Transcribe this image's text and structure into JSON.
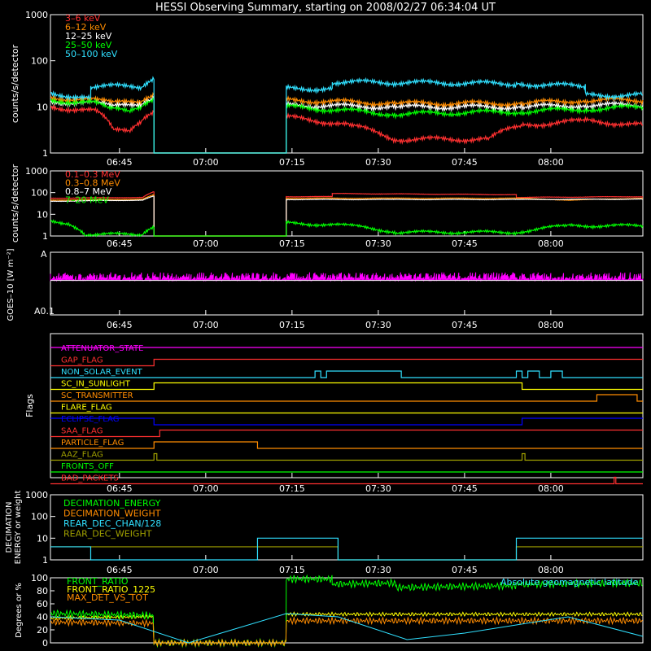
{
  "title": "HESSI Observing Summary, starting on 2008/02/27 06:34:04 UT",
  "time_ticks": [
    "06:45",
    "07:00",
    "07:15",
    "07:30",
    "07:45",
    "08:00"
  ],
  "colors": {
    "red": "#ff3030",
    "orange": "#ff8c00",
    "yellow": "#ffff00",
    "green": "#00ff00",
    "cyan": "#30e0ff",
    "magenta": "#ff00ff",
    "blue": "#0000ff",
    "olive": "#a0a000",
    "white": "#ffffff"
  },
  "chart_data": [
    {
      "type": "line",
      "id": "lo",
      "ylabel": "counts/s/detector",
      "yscale": "log",
      "ylim": [
        1,
        1000
      ],
      "yticks": [
        "1",
        "10",
        "100",
        "1000"
      ],
      "x_range_minutes": [
        0,
        103
      ],
      "series": [
        {
          "name": "3–6 keV",
          "color": "#ff3030",
          "x": [
            0,
            8,
            11,
            14,
            16,
            18,
            18,
            41,
            41,
            52,
            60,
            76,
            82,
            93,
            103
          ],
          "y": [
            10,
            8,
            3,
            3,
            5,
            8,
            1,
            1,
            6,
            4,
            2,
            2,
            4,
            5,
            4
          ]
        },
        {
          "name": "6–12 keV",
          "color": "#ff8c00",
          "x": [
            0,
            8,
            11,
            16,
            18,
            18,
            41,
            41,
            60,
            82,
            93,
            103
          ],
          "y": [
            16,
            14,
            12,
            14,
            20,
            1,
            1,
            14,
            12,
            12,
            14,
            14
          ]
        },
        {
          "name": "12–25 keV",
          "color": "#ffffff",
          "x": [
            0,
            8,
            11,
            16,
            18,
            18,
            41,
            41,
            60,
            82,
            93,
            103
          ],
          "y": [
            13,
            12,
            10,
            12,
            17,
            1,
            1,
            11,
            10,
            10,
            11,
            11
          ]
        },
        {
          "name": "25–50 keV",
          "color": "#00ff00",
          "x": [
            0,
            8,
            10,
            14,
            16,
            18,
            18,
            41,
            41,
            60,
            82,
            93,
            103
          ],
          "y": [
            14,
            12,
            9,
            8,
            10,
            15,
            1,
            1,
            10,
            7,
            8,
            9,
            10
          ]
        },
        {
          "name": "50–100 keV",
          "color": "#30e0ff",
          "x": [
            0,
            7,
            7,
            16,
            18,
            18,
            41,
            41,
            49,
            49,
            81,
            81,
            93,
            93,
            103
          ],
          "y": [
            20,
            15,
            28,
            28,
            45,
            1,
            1,
            25,
            25,
            35,
            32,
            32,
            28,
            18,
            18
          ]
        }
      ]
    },
    {
      "type": "line",
      "id": "hi",
      "ylabel": "counts/s/detector",
      "yscale": "log",
      "ylim": [
        1,
        1000
      ],
      "yticks": [
        "1",
        "10",
        "100",
        "1000"
      ],
      "x_range_minutes": [
        0,
        103
      ],
      "series": [
        {
          "name": "0.1–0.3 MeV",
          "color": "#ff3030",
          "x": [
            0,
            16,
            18,
            18,
            41,
            41,
            49,
            49,
            81,
            81,
            103
          ],
          "y": [
            55,
            60,
            110,
            1,
            1,
            65,
            65,
            90,
            80,
            60,
            65
          ]
        },
        {
          "name": "0.3–0.8 MeV",
          "color": "#ff8c00",
          "x": [
            0,
            16,
            18,
            18,
            41,
            41,
            60,
            81,
            90,
            103
          ],
          "y": [
            45,
            50,
            80,
            1,
            1,
            55,
            55,
            55,
            45,
            55
          ]
        },
        {
          "name": "0.8–7 MeV",
          "color": "#ffffff",
          "x": [
            0,
            16,
            18,
            18,
            41,
            41,
            60,
            81,
            103
          ],
          "y": [
            40,
            45,
            70,
            1,
            1,
            48,
            48,
            48,
            50
          ]
        },
        {
          "name": "7–20 MeV",
          "color": "#00ff00",
          "x": [
            0,
            3,
            6,
            16,
            18,
            18,
            41,
            41,
            52,
            60,
            81,
            90,
            103
          ],
          "y": [
            5,
            4,
            1.2,
            1.2,
            3,
            1,
            1,
            4,
            3,
            1.5,
            1.5,
            3,
            3
          ]
        }
      ]
    },
    {
      "type": "line",
      "id": "goes",
      "ylabel": "GOES–10 [W m⁻²]",
      "yticks": [
        "A0.1",
        "A"
      ],
      "series": [
        {
          "name": "GOES-10",
          "color": "#ff00ff",
          "level": 0.55
        }
      ]
    }
  ],
  "flags": {
    "ylabel": "Flags",
    "rows": [
      {
        "label": "ATTENUATOR_STATE",
        "color": "#ff00ff"
      },
      {
        "label": "GAP_FLAG",
        "color": "#ff3030"
      },
      {
        "label": "NON_SOLAR_EVENT",
        "color": "#30e0ff"
      },
      {
        "label": "SC_IN_SUNLIGHT",
        "color": "#ffff00"
      },
      {
        "label": "SC_TRANSMITTER",
        "color": "#ff8c00"
      },
      {
        "label": "FLARE_FLAG",
        "color": "#ffff00"
      },
      {
        "label": "ECLIPSE_FLAG",
        "color": "#0000ff"
      },
      {
        "label": "SAA_FLAG",
        "color": "#ff3030"
      },
      {
        "label": "PARTICLE_FLAG",
        "color": "#ff8c00"
      },
      {
        "label": "AAZ_FLAG",
        "color": "#a0a000"
      },
      {
        "label": "FRONTS_OFF",
        "color": "#00ff00"
      },
      {
        "label": "BAD_PACKETS",
        "color": "#ff3030"
      }
    ]
  },
  "decimation": {
    "ylabel": "DECIMATION ENERGY or weight",
    "yticks": [
      "1",
      "10",
      "100",
      "1000"
    ],
    "legend": [
      {
        "label": "DECIMATION_ENERGY",
        "color": "#00ff00"
      },
      {
        "label": "DECIMATION_WEIGHT",
        "color": "#ff8c00"
      },
      {
        "label": "REAR_DEC_CHAN/128",
        "color": "#30e0ff"
      },
      {
        "label": "REAR_DEC_WEIGHT",
        "color": "#a0a000"
      }
    ]
  },
  "ratios": {
    "ylabel": "Degrees or %",
    "yticks": [
      "0",
      "20",
      "40",
      "60",
      "80",
      "100"
    ],
    "legend": [
      {
        "label": "FRONT_RATIO",
        "color": "#00ff00"
      },
      {
        "label": "FRONT_RATIO_1225",
        "color": "#ffff00"
      },
      {
        "label": "MAX_DET_VS_TOT",
        "color": "#ff8c00"
      }
    ],
    "annotation": "Absolute geomagnetic latitude",
    "annotation_color": "#30e0ff"
  }
}
